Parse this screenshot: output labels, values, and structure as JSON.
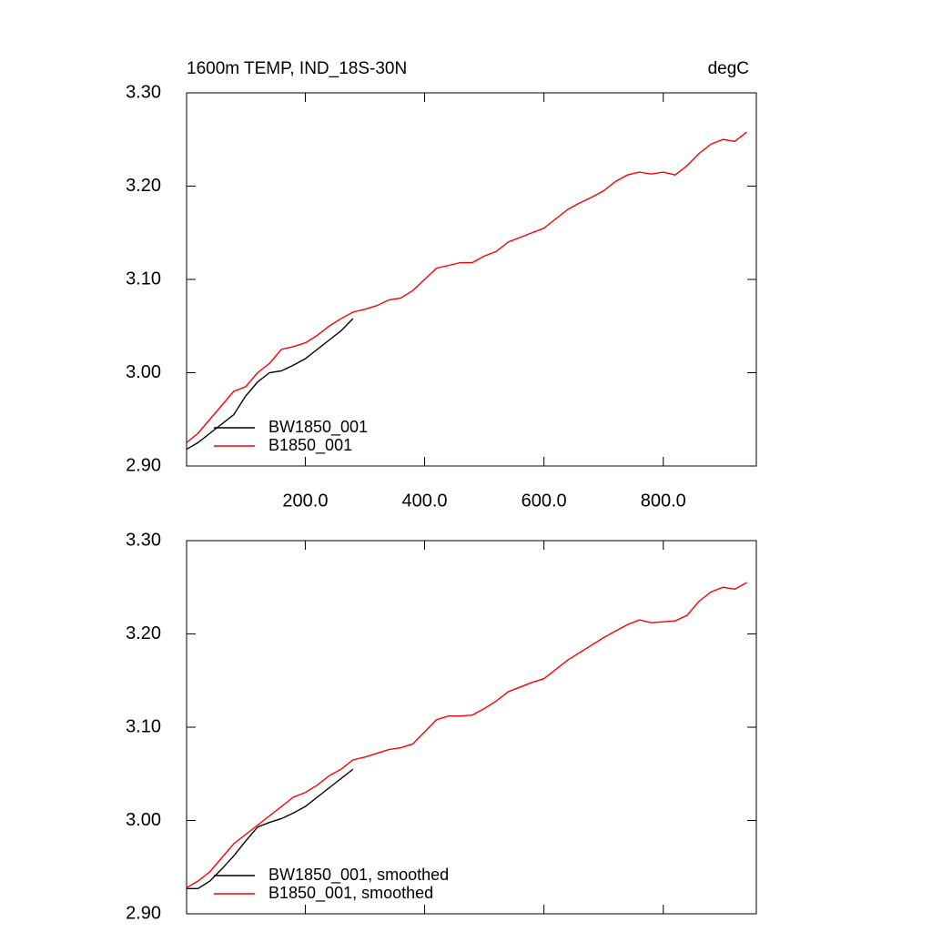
{
  "chart_data": [
    {
      "type": "line",
      "title": "1600m TEMP, IND_18S-30N",
      "units": "degC",
      "x": [
        1,
        20,
        40,
        60,
        80,
        100,
        120,
        140,
        160,
        180,
        200,
        220,
        240,
        260,
        280,
        300,
        320,
        340,
        360,
        380,
        400,
        420,
        440,
        460,
        480,
        500,
        520,
        540,
        560,
        580,
        600,
        620,
        640,
        660,
        680,
        700,
        720,
        740,
        760,
        780,
        800,
        820,
        840,
        860,
        880,
        900,
        920,
        940
      ],
      "series": [
        {
          "name": "BW1850_001",
          "color": "#000000",
          "values": [
            2.918,
            2.925,
            2.935,
            2.945,
            2.955,
            2.975,
            2.99,
            3.0,
            3.002,
            3.008,
            3.015,
            3.025,
            3.035,
            3.045,
            3.058,
            null,
            null,
            null,
            null,
            null,
            null,
            null,
            null,
            null,
            null,
            null,
            null,
            null,
            null,
            null,
            null,
            null,
            null,
            null,
            null,
            null,
            null,
            null,
            null,
            null,
            null,
            null,
            null,
            null,
            null,
            null,
            null,
            null
          ]
        },
        {
          "name": "B1850_001",
          "color": "#ff0000",
          "values": [
            2.925,
            2.935,
            2.95,
            2.965,
            2.98,
            2.985,
            3.0,
            3.01,
            3.025,
            3.028,
            3.032,
            3.04,
            3.05,
            3.058,
            3.065,
            3.068,
            3.072,
            3.078,
            3.08,
            3.088,
            3.1,
            3.112,
            3.115,
            3.118,
            3.118,
            3.125,
            3.13,
            3.14,
            3.145,
            3.15,
            3.155,
            3.165,
            3.175,
            3.182,
            3.188,
            3.195,
            3.205,
            3.212,
            3.215,
            3.213,
            3.215,
            3.212,
            3.222,
            3.235,
            3.245,
            3.25,
            3.248,
            3.258
          ]
        }
      ],
      "xlim": [
        1,
        956
      ],
      "xticks": [
        {
          "value": 200,
          "label": "200.0"
        },
        {
          "value": 400,
          "label": "400.0"
        },
        {
          "value": 600,
          "label": "600.0"
        },
        {
          "value": 800,
          "label": "800.0"
        }
      ],
      "ylim": [
        2.9,
        3.3
      ],
      "yticks": [
        {
          "value": 2.9,
          "label": "2.90"
        },
        {
          "value": 3.0,
          "label": "3.00"
        },
        {
          "value": 3.1,
          "label": "3.10"
        },
        {
          "value": 3.2,
          "label": "3.20"
        },
        {
          "value": 3.3,
          "label": "3.30"
        }
      ],
      "legend": "lower left"
    },
    {
      "type": "line",
      "x": [
        1,
        20,
        40,
        60,
        80,
        100,
        120,
        140,
        160,
        180,
        200,
        220,
        240,
        260,
        280,
        300,
        320,
        340,
        360,
        380,
        400,
        420,
        440,
        460,
        480,
        500,
        520,
        540,
        560,
        580,
        600,
        620,
        640,
        660,
        680,
        700,
        720,
        740,
        760,
        780,
        800,
        820,
        840,
        860,
        880,
        900,
        920,
        940
      ],
      "series": [
        {
          "name": "BW1850_001, smoothed",
          "color": "#000000",
          "values": [
            2.927,
            2.927,
            2.935,
            2.948,
            2.962,
            2.978,
            2.993,
            2.998,
            3.002,
            3.008,
            3.015,
            3.025,
            3.035,
            3.045,
            3.055,
            null,
            null,
            null,
            null,
            null,
            null,
            null,
            null,
            null,
            null,
            null,
            null,
            null,
            null,
            null,
            null,
            null,
            null,
            null,
            null,
            null,
            null,
            null,
            null,
            null,
            null,
            null,
            null,
            null,
            null,
            null,
            null,
            null
          ]
        },
        {
          "name": "B1850_001, smoothed",
          "color": "#ff0000",
          "values": [
            2.928,
            2.935,
            2.945,
            2.96,
            2.975,
            2.985,
            2.995,
            3.005,
            3.015,
            3.025,
            3.03,
            3.038,
            3.048,
            3.055,
            3.065,
            3.068,
            3.072,
            3.076,
            3.078,
            3.082,
            3.095,
            3.108,
            3.112,
            3.112,
            3.113,
            3.12,
            3.128,
            3.138,
            3.143,
            3.148,
            3.152,
            3.162,
            3.172,
            3.18,
            3.188,
            3.196,
            3.203,
            3.21,
            3.215,
            3.212,
            3.213,
            3.214,
            3.22,
            3.235,
            3.245,
            3.25,
            3.248,
            3.255
          ]
        }
      ],
      "xlim": [
        1,
        956
      ],
      "xticks": [
        200,
        400,
        600,
        800
      ],
      "ylim": [
        2.9,
        3.3
      ],
      "yticks": [
        {
          "value": 2.9,
          "label": "2.90"
        },
        {
          "value": 3.0,
          "label": "3.00"
        },
        {
          "value": 3.1,
          "label": "3.10"
        },
        {
          "value": 3.2,
          "label": "3.20"
        },
        {
          "value": 3.3,
          "label": "3.30"
        }
      ],
      "legend": "lower left"
    }
  ]
}
